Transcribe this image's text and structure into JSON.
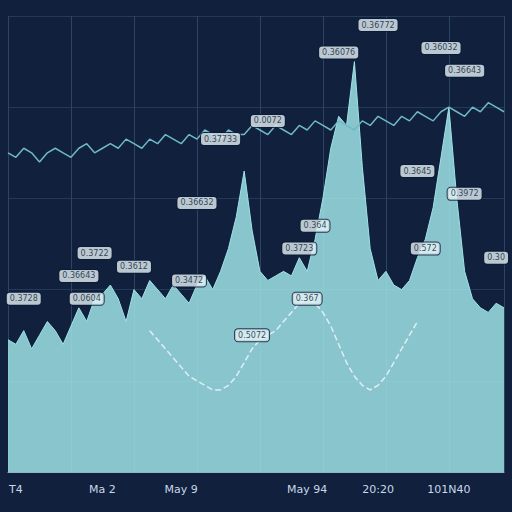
{
  "chart_data": {
    "type": "line",
    "categories": [
      null,
      "T4",
      null,
      null,
      null,
      null,
      null,
      null,
      null,
      null,
      null,
      null,
      "Ma 2",
      null,
      null,
      null,
      null,
      null,
      null,
      null,
      null,
      null,
      "May 9",
      null,
      null,
      null,
      null,
      null,
      null,
      null,
      null,
      null,
      null,
      null,
      null,
      null,
      null,
      null,
      "May 94",
      null,
      null,
      null,
      null,
      null,
      null,
      null,
      null,
      "20:20",
      null,
      null,
      null,
      null,
      null,
      null,
      null,
      null,
      "101N40",
      null,
      null,
      null,
      null,
      null,
      null,
      null
    ],
    "series": [
      {
        "type": "area",
        "color": "#9fe3e6",
        "values": [
          29,
          28,
          31,
          27,
          30,
          33,
          31,
          28,
          32,
          36,
          33,
          38,
          39,
          41,
          38,
          33,
          40,
          38,
          42,
          40,
          38,
          41,
          39,
          37,
          41,
          43,
          40,
          44,
          49,
          56,
          66,
          53,
          44,
          42,
          43,
          44,
          43,
          47,
          44,
          51,
          60,
          71,
          78,
          76,
          90,
          67,
          49,
          42,
          44,
          41,
          40,
          42,
          47,
          51,
          58,
          69,
          80,
          60,
          44,
          38,
          36,
          35,
          37,
          36
        ]
      },
      {
        "type": "line",
        "color": "#6fb8c8",
        "line_style": "solid",
        "values": [
          70,
          69,
          71,
          70,
          68,
          70,
          71,
          70,
          69,
          71,
          72,
          70,
          71,
          72,
          71,
          73,
          72,
          71,
          73,
          72,
          74,
          73,
          72,
          74,
          73,
          75,
          74,
          73,
          75,
          74,
          74,
          76,
          75,
          74,
          76,
          75,
          74,
          76,
          75,
          77,
          76,
          75,
          77,
          76,
          75,
          77,
          76,
          78,
          77,
          76,
          78,
          77,
          79,
          78,
          77,
          79,
          80,
          79,
          78,
          80,
          79,
          81,
          80,
          79
        ]
      },
      {
        "type": "line",
        "color": "#dfeef5",
        "line_style": "dashed",
        "values": [
          null,
          null,
          null,
          null,
          null,
          null,
          null,
          null,
          null,
          null,
          null,
          null,
          null,
          null,
          null,
          null,
          null,
          null,
          31,
          29,
          27,
          25,
          23,
          21,
          20,
          19,
          18,
          18,
          19,
          21,
          24,
          27,
          29,
          30,
          31,
          33,
          35,
          37,
          38,
          37,
          35,
          32,
          28,
          24,
          21,
          19,
          18,
          19,
          21,
          24,
          27,
          30,
          33,
          null,
          null,
          null,
          null,
          null,
          null,
          null,
          null,
          null,
          null,
          null
        ]
      }
    ],
    "annotations": [
      {
        "text": "0.36632",
        "x": 24,
        "y": 59
      },
      {
        "text": "0.36772",
        "x": 47,
        "y": 98
      },
      {
        "text": "0.36076",
        "x": 42,
        "y": 92
      },
      {
        "text": "0.36032",
        "x": 55,
        "y": 93
      },
      {
        "text": "0.36643",
        "x": 9,
        "y": 43
      },
      {
        "text": "0.0072",
        "x": 33,
        "y": 77
      },
      {
        "text": "0.37733",
        "x": 27,
        "y": 73
      },
      {
        "text": "0.36643",
        "x": 58,
        "y": 88
      },
      {
        "text": "0.3972",
        "x": 58,
        "y": 61
      },
      {
        "text": "0.3645",
        "x": 52,
        "y": 66
      },
      {
        "text": "0.3722",
        "x": 11,
        "y": 48
      },
      {
        "text": "0.3728",
        "x": 2,
        "y": 38
      },
      {
        "text": "0.3612",
        "x": 16,
        "y": 45
      },
      {
        "text": "0.3472",
        "x": 23,
        "y": 42
      },
      {
        "text": "0.0604",
        "x": 10,
        "y": 38
      },
      {
        "text": "0.3723",
        "x": 37,
        "y": 49
      },
      {
        "text": "0.364",
        "x": 39,
        "y": 54
      },
      {
        "text": "0.367",
        "x": 38,
        "y": 38
      },
      {
        "text": "0.572",
        "x": 53,
        "y": 49
      },
      {
        "text": "0.5072",
        "x": 31,
        "y": 30
      },
      {
        "text": "0.30",
        "x": 62,
        "y": 47
      }
    ],
    "ylim": [
      0,
      100
    ],
    "yticks": [
      0,
      20,
      40,
      60,
      80,
      100
    ],
    "grid": true,
    "tick_labels": "x"
  }
}
